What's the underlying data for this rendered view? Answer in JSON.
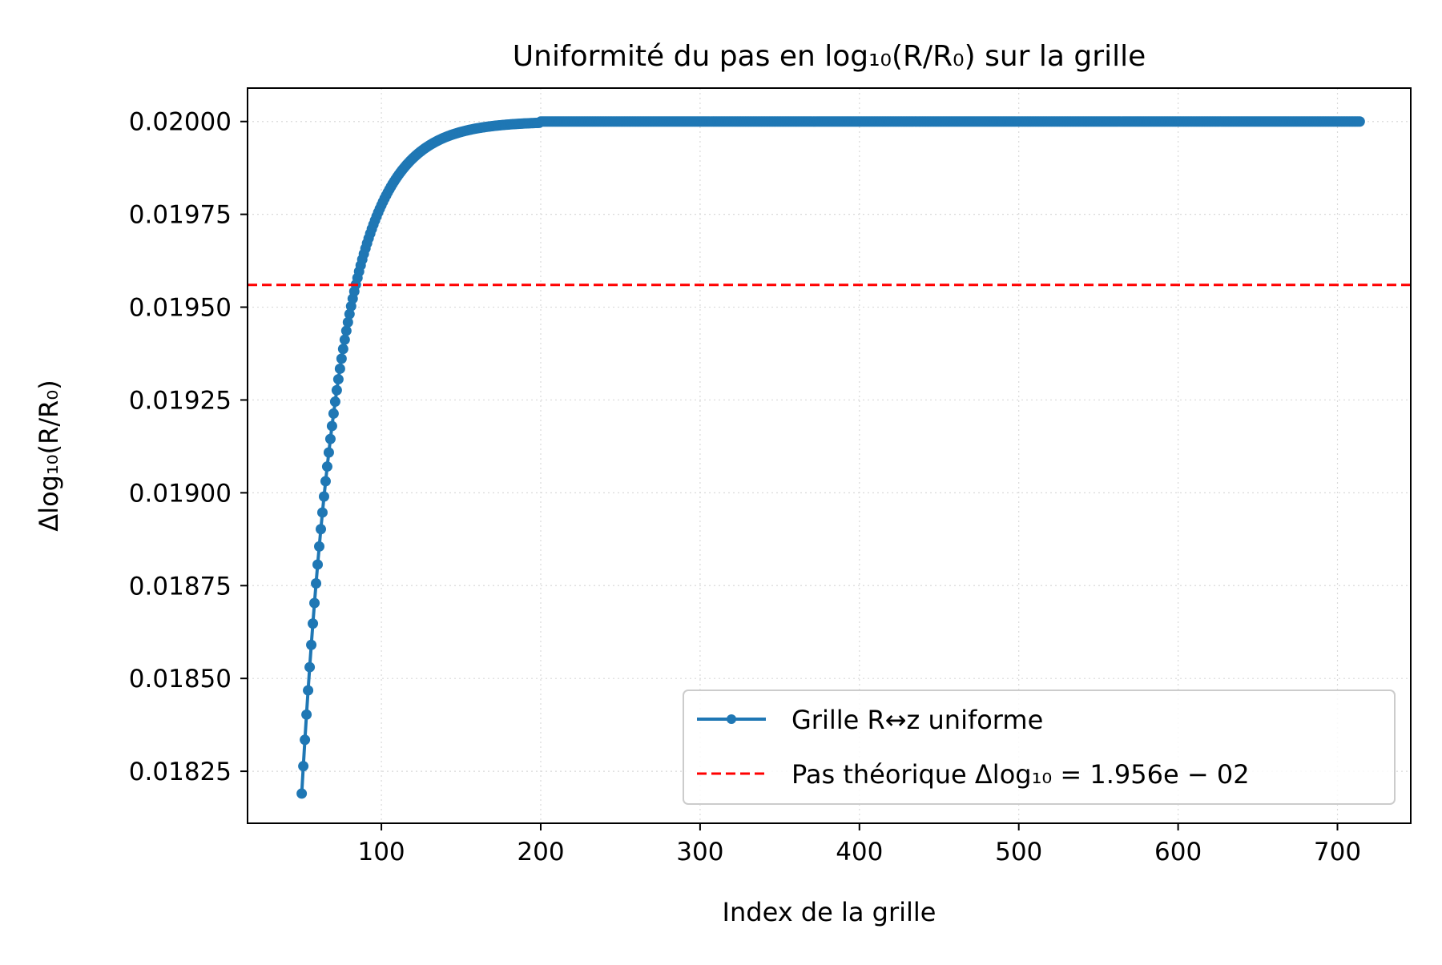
{
  "chart_data": {
    "type": "line",
    "title": "Uniformité du pas en log₁₀(R/R₀) sur la grille",
    "xlabel": "Index de la grille",
    "ylabel": "Δlog₁₀(R/R₀)",
    "xlim": [
      16,
      746
    ],
    "ylim": [
      0.01811,
      0.02009
    ],
    "x_ticks": [
      100,
      200,
      300,
      400,
      500,
      600,
      700
    ],
    "x_tick_labels": [
      "100",
      "200",
      "300",
      "400",
      "500",
      "600",
      "700"
    ],
    "y_ticks": [
      0.01825,
      0.0185,
      0.01875,
      0.019,
      0.01925,
      0.0195,
      0.01975,
      0.02
    ],
    "y_tick_labels": [
      "0.01825",
      "0.01850",
      "0.01875",
      "0.01900",
      "0.01925",
      "0.01950",
      "0.01975",
      "0.02000"
    ],
    "grid": true,
    "legend_position": "lower-right",
    "series": [
      {
        "name": "Grille R↔z uniforme",
        "color": "#1f77b4",
        "style": "solid-line-with-dot-markers",
        "x_start": 50,
        "x_end": 714,
        "x_step": 1,
        "y_min": 0.01819,
        "y_max": 0.02,
        "saturation_index": 200
      },
      {
        "name": "Pas théorique Δlog₁₀ = 1.956e − 02",
        "color": "#ff0000",
        "style": "dashed-horizontal-line",
        "y": 0.01956
      }
    ]
  }
}
